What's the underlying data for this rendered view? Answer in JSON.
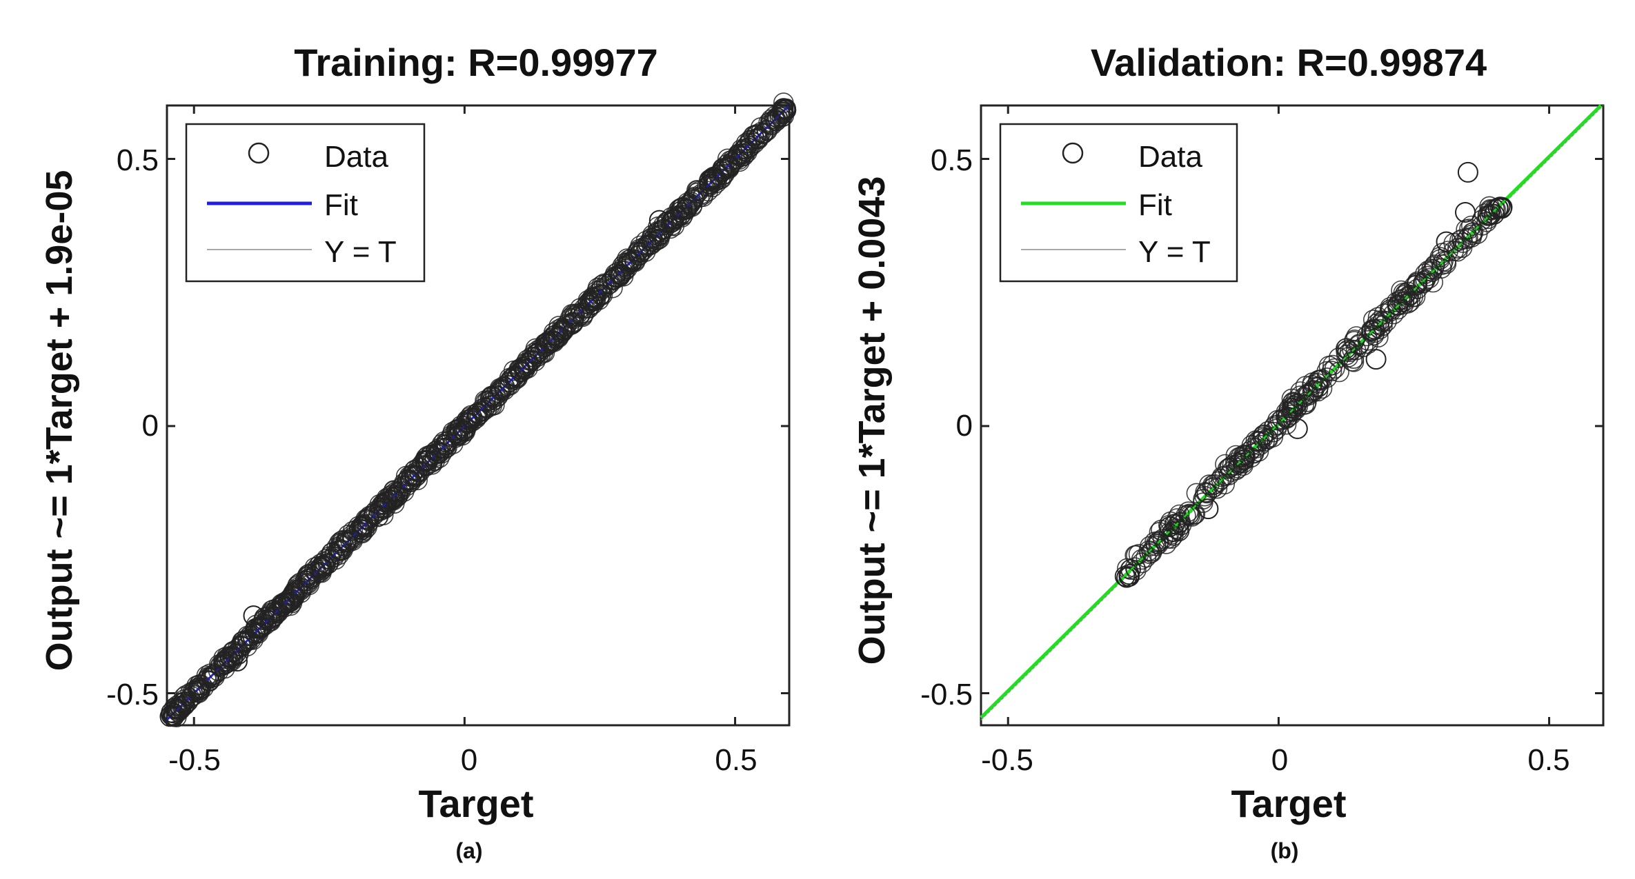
{
  "chart_data": [
    {
      "type": "scatter",
      "panel": "(a)",
      "title": "Training: R=0.99977",
      "xlabel": "Target",
      "ylabel": "Output ~= 1*Target + 1.9e-05",
      "xlim": [
        -0.55,
        0.6
      ],
      "ylim": [
        -0.56,
        0.6
      ],
      "xticks": [
        -0.5,
        0,
        0.5
      ],
      "yticks": [
        -0.5,
        0,
        0.5
      ],
      "xtick_labels": [
        "-0.5",
        "0",
        "0.5"
      ],
      "ytick_labels": [
        "-0.5",
        "0",
        "0.5"
      ],
      "fit": {
        "slope": 1,
        "intercept": 1.9e-05,
        "color": "#1f1fdc"
      },
      "identity_color": "#8a8a8a",
      "data_range": [
        -0.54,
        0.59
      ],
      "outliers": [
        {
          "x": 0.36,
          "y": 0.385
        },
        {
          "x": -0.39,
          "y": -0.355
        },
        {
          "x": -0.42,
          "y": -0.44
        }
      ],
      "legend": {
        "location": "top-left",
        "entries": [
          "Data",
          "Fit",
          "Y = T"
        ]
      }
    },
    {
      "type": "scatter",
      "panel": "(b)",
      "title": "Validation: R=0.99874",
      "xlabel": "Target",
      "ylabel": "Output ~= 1*Target + 0.0043",
      "xlim": [
        -0.55,
        0.6
      ],
      "ylim": [
        -0.56,
        0.6
      ],
      "xticks": [
        -0.5,
        0,
        0.5
      ],
      "yticks": [
        -0.5,
        0,
        0.5
      ],
      "xtick_labels": [
        "-0.5",
        "0",
        "0.5"
      ],
      "ytick_labels": [
        "-0.5",
        "0",
        "0.5"
      ],
      "fit": {
        "slope": 1,
        "intercept": 0.0043,
        "color": "#22dd22"
      },
      "identity_color": "#8a8a8a",
      "data_range": [
        -0.28,
        0.41
      ],
      "outliers": [
        {
          "x": 0.35,
          "y": 0.475
        },
        {
          "x": 0.345,
          "y": 0.4
        },
        {
          "x": 0.31,
          "y": 0.345
        },
        {
          "x": 0.18,
          "y": 0.125
        },
        {
          "x": 0.035,
          "y": -0.005
        },
        {
          "x": -0.13,
          "y": -0.155
        }
      ],
      "legend": {
        "location": "top-left",
        "entries": [
          "Data",
          "Fit",
          "Y = T"
        ]
      }
    }
  ]
}
